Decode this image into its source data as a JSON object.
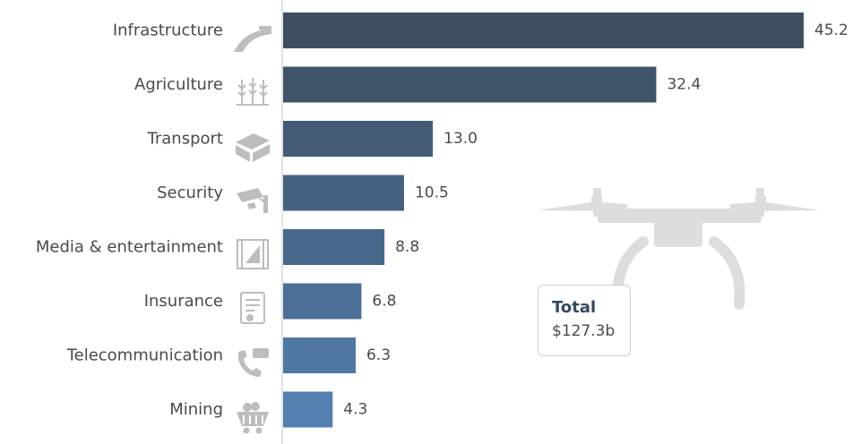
{
  "chart_data": {
    "type": "bar",
    "orientation": "horizontal",
    "categories": [
      "Infrastructure",
      "Agriculture",
      "Transport",
      "Security",
      "Media & entertainment",
      "Insurance",
      "Telecommunication",
      "Mining"
    ],
    "values": [
      45.2,
      32.4,
      13.0,
      10.5,
      8.8,
      6.8,
      6.3,
      4.3
    ],
    "value_labels": [
      "45.2",
      "32.4",
      "13.0",
      "10.5",
      "8.8",
      "6.8",
      "6.3",
      "4.3"
    ],
    "icons": [
      "road-icon",
      "wheat-icon",
      "package-icon",
      "security-camera-icon",
      "film-icon",
      "insurance-document-icon",
      "telephone-icon",
      "mining-cart-icon"
    ],
    "xlim": [
      0,
      45.2
    ],
    "grid": false,
    "bar_colors": [
      "#3d4f61",
      "#3f5469",
      "#435b74",
      "#45617f",
      "#48688b",
      "#4b6f97",
      "#4e77a4",
      "#537fb1"
    ]
  },
  "total": {
    "title": "Total",
    "value": "$127.3b"
  },
  "background_graphic": "drone-icon",
  "colors": {
    "axis": "#c8c8c8",
    "icon": "#bdbdbd",
    "text": "#4a4a4a",
    "total_title": "#34495e"
  }
}
